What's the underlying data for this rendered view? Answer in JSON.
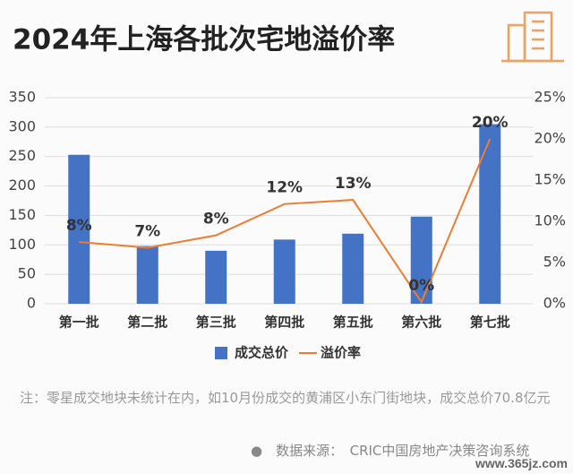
{
  "chart_data": {
    "type": "bar_line",
    "title": "2024年上海各批次宅地溢价率",
    "categories": [
      "第一批",
      "第二批",
      "第三批",
      "第四批",
      "第五批",
      "第六批",
      "第七批"
    ],
    "series": [
      {
        "name": "成交总价",
        "color": "#4472c4",
        "values": [
          253,
          98,
          90,
          109,
          119,
          148,
          305
        ]
      },
      {
        "name": "溢价率",
        "color": "#ed7d31",
        "axis": "y2",
        "values": [
          7.5,
          6.8,
          8.3,
          12.1,
          12.6,
          0.2,
          20
        ],
        "value_labels": [
          "8%",
          "7%",
          "8%",
          "12%",
          "13%",
          "0%",
          "20%"
        ]
      }
    ],
    "ylim": [
      0,
      350
    ],
    "yticks": [
      0,
      50,
      100,
      150,
      200,
      250,
      300,
      350
    ],
    "y2lim": [
      0,
      25
    ],
    "y2ticks": [
      {
        "value": 0,
        "label": "0%"
      },
      {
        "value": 5,
        "label": "5%"
      },
      {
        "value": 10,
        "label": "10%"
      },
      {
        "value": 15,
        "label": "15%"
      },
      {
        "value": 20,
        "label": "20%"
      },
      {
        "value": 25,
        "label": "25%"
      }
    ],
    "grid": true,
    "legend": "bottom",
    "note": "注：零星成交地块未统计在内，如10月份成交的黄浦区小东门街地块，成交总价70.8亿元",
    "source": "●　数据来源：　CRIC中国房地产决策咨询系统",
    "watermark": "www.365jz.com"
  }
}
